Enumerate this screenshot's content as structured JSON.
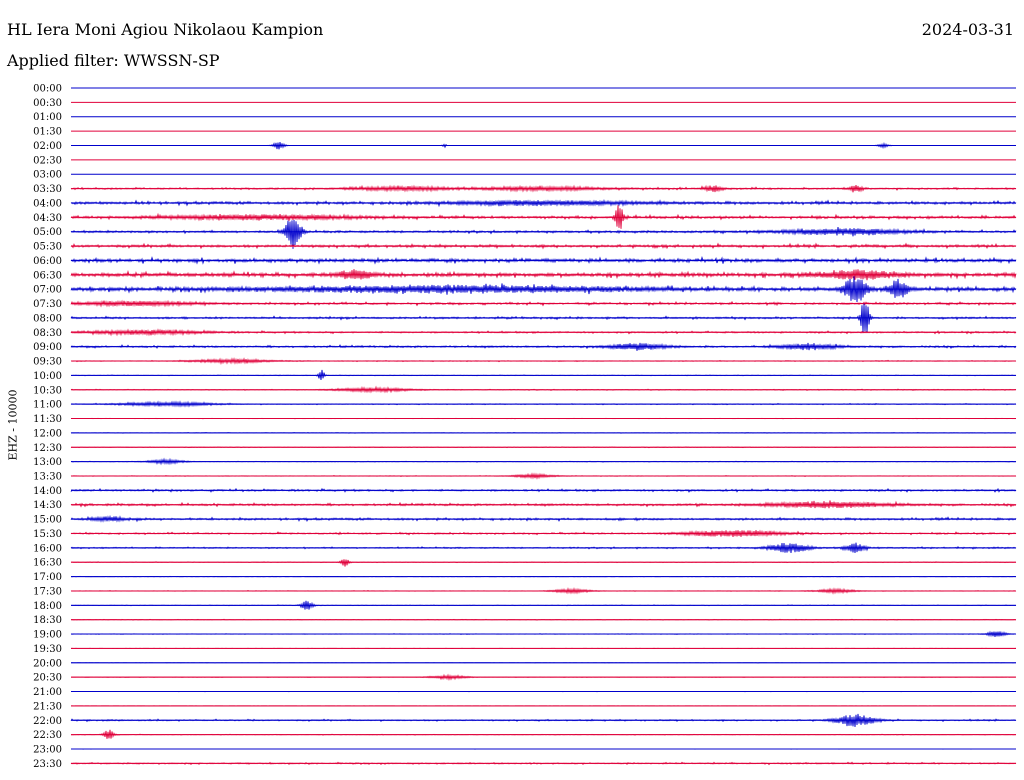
{
  "header": {
    "station": "HL Iera Moni Agiou Nikolaou Kampion",
    "date": "2024-03-31",
    "filter": "Applied filter: WWSSN-SP"
  },
  "chart_data": {
    "type": "line",
    "title": "HL Iera Moni Agiou Nikolaou Kampion",
    "date": "2024-03-31",
    "subtitle": "Applied filter: WWSSN-SP",
    "ylabel": "EHZ - 10000",
    "xlabel": "",
    "grid": false,
    "row_labels": [
      "00:00",
      "00:30",
      "01:00",
      "01:30",
      "02:00",
      "02:30",
      "03:00",
      "03:30",
      "04:00",
      "04:30",
      "05:00",
      "05:30",
      "06:00",
      "06:30",
      "07:00",
      "07:30",
      "08:00",
      "08:30",
      "09:00",
      "09:30",
      "10:00",
      "10:30",
      "11:00",
      "11:30",
      "12:00",
      "12:30",
      "13:00",
      "13:30",
      "14:00",
      "14:30",
      "15:00",
      "15:30",
      "16:00",
      "16:30",
      "17:00",
      "17:30",
      "18:00",
      "18:30",
      "19:00",
      "19:30",
      "20:00",
      "20:30",
      "21:00",
      "21:30",
      "22:00",
      "22:30",
      "23:00",
      "23:30"
    ],
    "colors": [
      "#0000cc",
      "#e0003a"
    ],
    "row_noise": [
      0,
      0,
      0,
      0,
      0,
      0,
      0,
      0.6,
      1.0,
      1.0,
      0.8,
      1.0,
      1.4,
      1.5,
      1.5,
      0.8,
      0.7,
      0.6,
      0.7,
      0.3,
      0.2,
      0.3,
      0.3,
      0.1,
      0.2,
      0.2,
      0.2,
      0.2,
      0.7,
      0.8,
      0.8,
      0.6,
      0.5,
      0.2,
      0.1,
      0.2,
      0.2,
      0.2,
      0.2,
      0.05,
      0.05,
      0.1,
      0.05,
      0.05,
      0.5,
      0.2,
      0.05,
      0.5
    ],
    "events": [
      {
        "row": 4,
        "t": 0.22,
        "amp": 4,
        "w": 0.006
      },
      {
        "row": 4,
        "t": 0.395,
        "amp": 2,
        "w": 0.002
      },
      {
        "row": 4,
        "t": 0.86,
        "amp": 2,
        "w": 0.006
      },
      {
        "row": 7,
        "t": 0.35,
        "amp": 2,
        "w": 0.05
      },
      {
        "row": 7,
        "t": 0.5,
        "amp": 2,
        "w": 0.06
      },
      {
        "row": 7,
        "t": 0.68,
        "amp": 3,
        "w": 0.01
      },
      {
        "row": 7,
        "t": 0.83,
        "amp": 3,
        "w": 0.008
      },
      {
        "row": 8,
        "t": 0.5,
        "amp": 2,
        "w": 0.1
      },
      {
        "row": 9,
        "t": 0.2,
        "amp": 2,
        "w": 0.1
      },
      {
        "row": 9,
        "t": 0.58,
        "amp": 14,
        "w": 0.004
      },
      {
        "row": 10,
        "t": 0.235,
        "amp": 17,
        "w": 0.008
      },
      {
        "row": 10,
        "t": 0.82,
        "amp": 3,
        "w": 0.06
      },
      {
        "row": 13,
        "t": 0.3,
        "amp": 4,
        "w": 0.02
      },
      {
        "row": 13,
        "t": 0.83,
        "amp": 4,
        "w": 0.04
      },
      {
        "row": 14,
        "t": 0.4,
        "amp": 3,
        "w": 0.18
      },
      {
        "row": 14,
        "t": 0.83,
        "amp": 13,
        "w": 0.012
      },
      {
        "row": 14,
        "t": 0.875,
        "amp": 9,
        "w": 0.01
      },
      {
        "row": 15,
        "t": 0.07,
        "amp": 2,
        "w": 0.06
      },
      {
        "row": 16,
        "t": 0.84,
        "amp": 22,
        "w": 0.004
      },
      {
        "row": 17,
        "t": 0.08,
        "amp": 2,
        "w": 0.06
      },
      {
        "row": 18,
        "t": 0.6,
        "amp": 3,
        "w": 0.03
      },
      {
        "row": 18,
        "t": 0.78,
        "amp": 3,
        "w": 0.03
      },
      {
        "row": 19,
        "t": 0.17,
        "amp": 2,
        "w": 0.04
      },
      {
        "row": 20,
        "t": 0.265,
        "amp": 6,
        "w": 0.003
      },
      {
        "row": 21,
        "t": 0.32,
        "amp": 2,
        "w": 0.04
      },
      {
        "row": 22,
        "t": 0.1,
        "amp": 2,
        "w": 0.05
      },
      {
        "row": 26,
        "t": 0.1,
        "amp": 2,
        "w": 0.02
      },
      {
        "row": 27,
        "t": 0.49,
        "amp": 2,
        "w": 0.02
      },
      {
        "row": 29,
        "t": 0.8,
        "amp": 3,
        "w": 0.06
      },
      {
        "row": 30,
        "t": 0.04,
        "amp": 2,
        "w": 0.02
      },
      {
        "row": 31,
        "t": 0.7,
        "amp": 3,
        "w": 0.05
      },
      {
        "row": 32,
        "t": 0.76,
        "amp": 5,
        "w": 0.02
      },
      {
        "row": 32,
        "t": 0.83,
        "amp": 5,
        "w": 0.01
      },
      {
        "row": 33,
        "t": 0.29,
        "amp": 5,
        "w": 0.004
      },
      {
        "row": 35,
        "t": 0.53,
        "amp": 2,
        "w": 0.02
      },
      {
        "row": 35,
        "t": 0.81,
        "amp": 2,
        "w": 0.02
      },
      {
        "row": 36,
        "t": 0.25,
        "amp": 5,
        "w": 0.006
      },
      {
        "row": 38,
        "t": 0.98,
        "amp": 3,
        "w": 0.01
      },
      {
        "row": 41,
        "t": 0.4,
        "amp": 2,
        "w": 0.02
      },
      {
        "row": 44,
        "t": 0.83,
        "amp": 6,
        "w": 0.02
      },
      {
        "row": 45,
        "t": 0.04,
        "amp": 5,
        "w": 0.005
      }
    ]
  }
}
